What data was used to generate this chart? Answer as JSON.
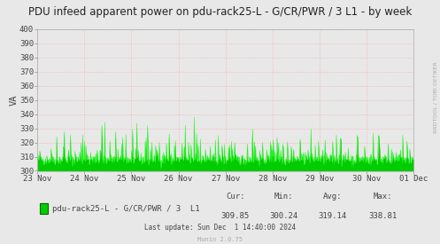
{
  "title": "PDU infeed apparent power on pdu-rack25-L - G/CR/PWR / 3 L1 - by week",
  "ylabel": "VA",
  "bg_color": "#e8e8e8",
  "plot_bg_color": "#e8e8e8",
  "grid_color": "#ff9999",
  "line_color": "#00cc00",
  "fill_color": "#00cc00",
  "ylim": [
    300,
    400
  ],
  "xlabels": [
    "23 Nov",
    "24 Nov",
    "25 Nov",
    "26 Nov",
    "27 Nov",
    "28 Nov",
    "29 Nov",
    "30 Nov",
    "01 Dec"
  ],
  "legend_label": "pdu-rack25-L - G/CR/PWR / 3  L1",
  "cur": "309.85",
  "min": "300.24",
  "avg": "319.14",
  "max": "338.81",
  "last_update": "Last update: Sun Dec  1 14:40:00 2024",
  "munin_version": "Munin 2.0.75",
  "title_fontsize": 8.5,
  "axis_fontsize": 6.5,
  "legend_fontsize": 6.5,
  "base_value": 308,
  "num_points": 800
}
